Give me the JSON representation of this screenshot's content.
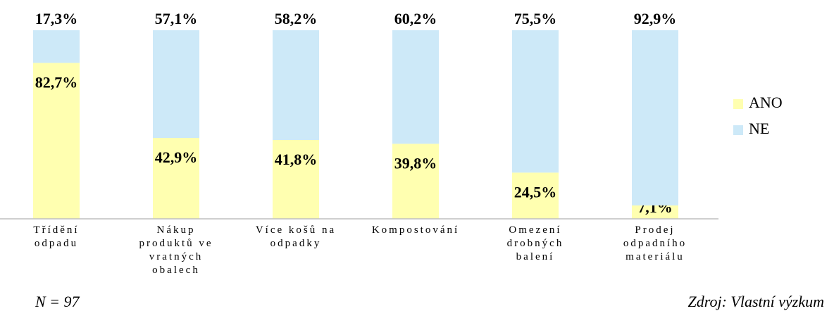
{
  "chart_data": {
    "type": "stacked_bar",
    "categories": [
      "Třídění\nodpadu",
      "Nákup\nproduktů ve\nvratných\nobalech",
      "Více košů na\nodpadky",
      "Kompostování",
      "Omezení\ndrobných\nbalení",
      "Prodej\nodpadního\nmateriálu"
    ],
    "series": [
      {
        "name": "ANO",
        "color": "#ffffb0",
        "values": [
          82.7,
          42.9,
          41.8,
          39.8,
          24.5,
          7.1
        ],
        "value_labels": [
          "82,7%",
          "42,9%",
          "41,8%",
          "39,8%",
          "24,5%",
          "7,1%"
        ]
      },
      {
        "name": "NE",
        "color": "#cde9f8",
        "values": [
          17.3,
          57.1,
          58.2,
          60.2,
          75.5,
          92.9
        ],
        "value_labels": [
          "17,3%",
          "57,1%",
          "58,2%",
          "60,2%",
          "75,5%",
          "92,9%"
        ]
      }
    ],
    "ylim": [
      0,
      100
    ],
    "annotations": [
      "N = 97",
      "Zdroj: Vlastní výzkum"
    ]
  }
}
